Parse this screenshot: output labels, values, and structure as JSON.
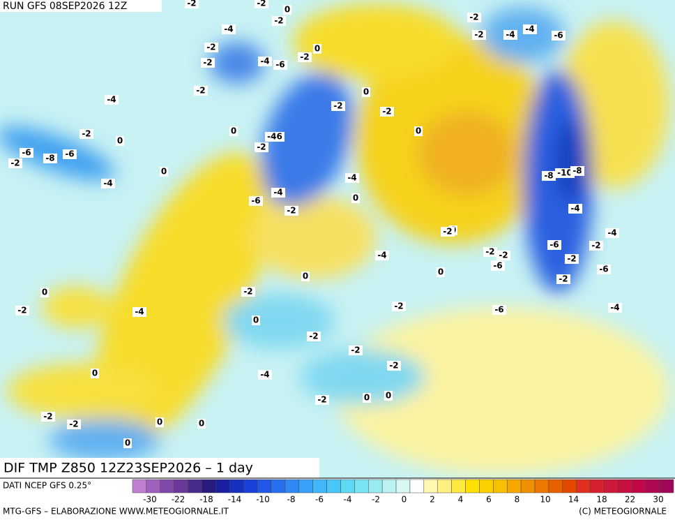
{
  "header": {
    "run": "RUN GFS 08SEP2026 12Z",
    "title": "DIF TMP Z850 12Z23SEP2026 – 1 day"
  },
  "map": {
    "labels": [
      "-2",
      "-2",
      "0",
      "-2",
      "-4",
      "-2",
      "0",
      "-2",
      "-4",
      "-6",
      "-2",
      "-2",
      "-4",
      "-2",
      "0",
      "0",
      "-2",
      "-2",
      "0",
      "-2",
      "0",
      "-6",
      "-8",
      "-6",
      "-2",
      "0",
      "-4",
      "-46",
      "-2",
      "-6",
      "-4",
      "-4",
      "-2",
      "0",
      "-2",
      "-4",
      "-6",
      "-2",
      "-4",
      "-8",
      "-10",
      "-8",
      "-4",
      "-6",
      "-2",
      "-4",
      "-6",
      "-2",
      "0",
      "-2",
      "-2",
      "0",
      "-2",
      "-6",
      "-4",
      "-2",
      "0",
      "-2",
      "0",
      "-4",
      "-2",
      "-2",
      "-2",
      "-2",
      "-2",
      "-4",
      "-2",
      "0",
      "0",
      "-6",
      "-4",
      "-2",
      "0",
      "0",
      "0",
      "0",
      "0",
      "-2",
      "0"
    ]
  },
  "legend": {
    "source": "DATI NCEP GFS 0.25°",
    "ticks": [
      "-30",
      "-22",
      "-18",
      "-14",
      "-10",
      "-8",
      "-6",
      "-4",
      "-2",
      "0",
      "2",
      "4",
      "6",
      "8",
      "10",
      "14",
      "18",
      "22",
      "30"
    ]
  },
  "footer": {
    "left": "MTG-GFS – ELABORAZIONE WWW.METEOGIORNALE.IT",
    "right": "(C) METEOGIORNALE"
  }
}
